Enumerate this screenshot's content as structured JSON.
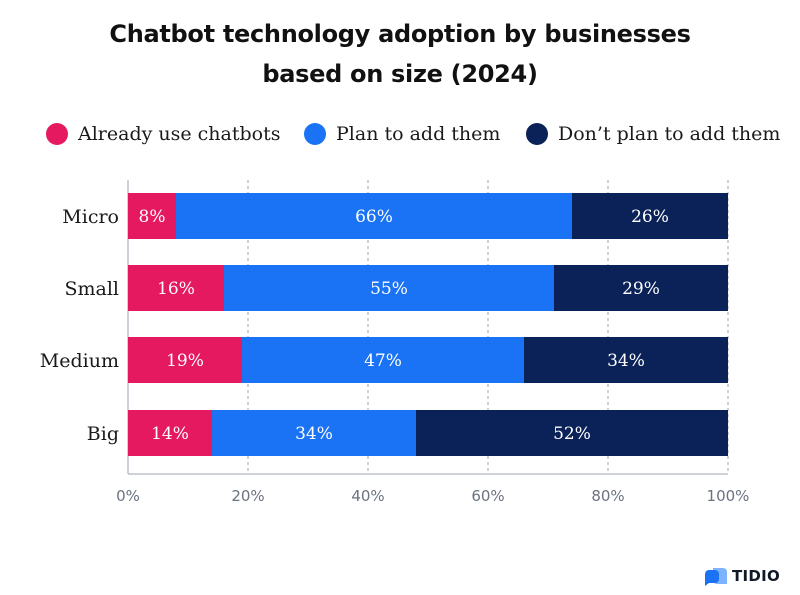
{
  "chart_data": {
    "type": "bar",
    "orientation": "horizontal",
    "stacked": true,
    "title_lines": [
      "Chatbot technology adoption by businesses",
      "based on size (2024)"
    ],
    "categories": [
      "Micro",
      "Small",
      "Medium",
      "Big"
    ],
    "series": [
      {
        "name": "Already use chatbots",
        "color": "#e5195f",
        "values": [
          8,
          16,
          19,
          14
        ],
        "labels": [
          "8%",
          "16%",
          "19%",
          "14%"
        ]
      },
      {
        "name": "Plan to add them",
        "color": "#1a73f5",
        "values": [
          66,
          55,
          47,
          34
        ],
        "labels": [
          "66%",
          "55%",
          "47%",
          "34%"
        ]
      },
      {
        "name": "Don’t plan to add them",
        "color": "#0b2258",
        "values": [
          26,
          29,
          34,
          52
        ],
        "labels": [
          "26%",
          "29%",
          "34%",
          "52%"
        ]
      }
    ],
    "xlim": [
      0,
      100
    ],
    "xticks": [
      0,
      20,
      40,
      60,
      80,
      100
    ],
    "xtick_labels": [
      "0%",
      "20%",
      "40%",
      "60%",
      "80%",
      "100%"
    ],
    "grid": "vertical-dashed",
    "legend_position": "top"
  },
  "brand": {
    "name": "TIDIO",
    "icon": "tidio-chat-bubble-icon",
    "color": "#1a73f5"
  }
}
